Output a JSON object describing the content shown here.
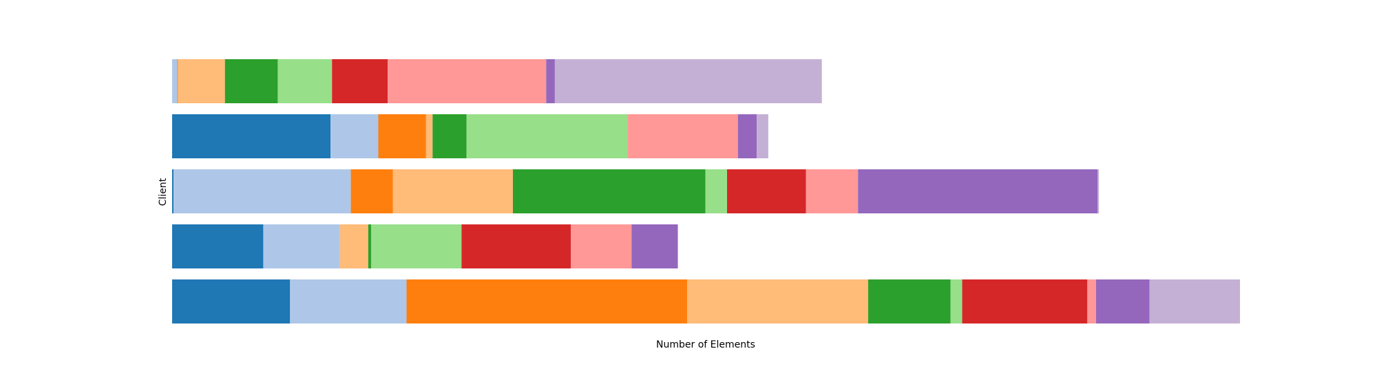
{
  "chart_data": {
    "type": "bar",
    "orientation": "horizontal",
    "stacked": true,
    "xlabel": "Number of Elements",
    "ylabel": "Client",
    "xlim": [
      0,
      1475
    ],
    "show_axes": false,
    "grid": false,
    "legend": "none",
    "categories": [
      "0",
      "1",
      "2",
      "3",
      "4"
    ],
    "category_order": "bottom-to-top",
    "series": [
      {
        "color": "#1f77b4",
        "values": [
          163,
          126,
          2,
          219,
          0
        ]
      },
      {
        "color": "#aec7e8",
        "values": [
          161,
          106,
          245,
          66,
          7
        ]
      },
      {
        "color": "#ff7f0e",
        "values": [
          388,
          0,
          58,
          66,
          1
        ]
      },
      {
        "color": "#ffbb78",
        "values": [
          250,
          39,
          166,
          9,
          65
        ]
      },
      {
        "color": "#2ca02c",
        "values": [
          114,
          4,
          266,
          47,
          73
        ]
      },
      {
        "color": "#98df8a",
        "values": [
          16,
          125,
          30,
          223,
          75
        ]
      },
      {
        "color": "#d62728",
        "values": [
          173,
          151,
          109,
          0,
          77
        ]
      },
      {
        "color": "#ff9896",
        "values": [
          12,
          84,
          72,
          152,
          219
        ]
      },
      {
        "color": "#9467bd",
        "values": [
          74,
          64,
          331,
          26,
          12
        ]
      },
      {
        "color": "#c5b0d5",
        "values": [
          125,
          0,
          2,
          16,
          369
        ]
      }
    ]
  }
}
